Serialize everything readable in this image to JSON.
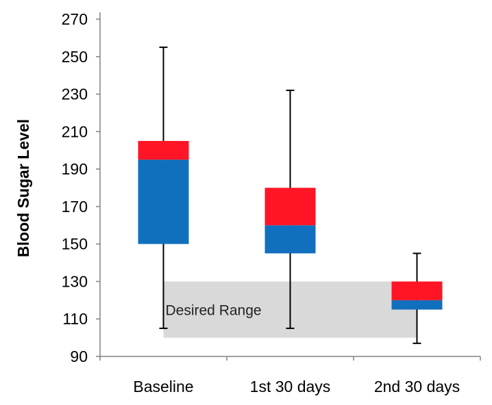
{
  "chart_data": {
    "type": "box",
    "title": "",
    "xlabel": "",
    "ylabel": "Blood Sugar Level",
    "ylim": [
      90,
      270
    ],
    "yticks": [
      90,
      110,
      130,
      150,
      170,
      190,
      210,
      230,
      250,
      270
    ],
    "categories": [
      "Baseline",
      "1st 30 days",
      "2nd 30 days"
    ],
    "boxes": [
      {
        "category": "Baseline",
        "min": 105,
        "q1": 150,
        "median": 195,
        "q3": 205,
        "max": 255
      },
      {
        "category": "1st 30 days",
        "min": 105,
        "q1": 145,
        "median": 160,
        "q3": 180,
        "max": 232
      },
      {
        "category": "2nd 30 days",
        "min": 97,
        "q1": 115,
        "median": 120,
        "q3": 130,
        "max": 145
      }
    ],
    "desired_range": {
      "label": "Desired Range",
      "low": 100,
      "high": 130
    },
    "colors": {
      "lower_box": "#1170BE",
      "upper_box": "#FF1525",
      "range_band": "#D9D9D9",
      "axis": "#808080",
      "whisker": "#000000"
    }
  }
}
